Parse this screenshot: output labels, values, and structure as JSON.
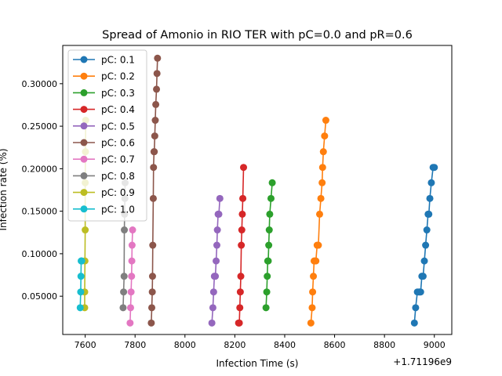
{
  "chart_data": {
    "type": "line",
    "title": "Spread of Amonio in RIO TER with pC=0.0 and pR=0.6",
    "xlabel": "Infection Time (s)",
    "ylabel": "Infection rate (%)",
    "x_offset_label": "+1.71196e9",
    "xlim": [
      7510,
      9070
    ],
    "ylim": [
      0.005,
      0.345
    ],
    "x_ticks": [
      7600,
      7800,
      8000,
      8200,
      8400,
      8600,
      8800,
      9000
    ],
    "x_tick_labels": [
      "7600",
      "7800",
      "8000",
      "8200",
      "8400",
      "8600",
      "8800",
      "9000"
    ],
    "y_ticks": [
      0.05,
      0.1,
      0.15,
      0.2,
      0.25,
      0.3
    ],
    "y_tick_labels": [
      "0.05000",
      "0.10000",
      "0.15000",
      "0.20000",
      "0.25000",
      "0.30000"
    ],
    "grid": false,
    "legend_position": "top-left",
    "series": [
      {
        "name": "pC: 0.1",
        "color": "#1f77b4",
        "x": [
          8920,
          8925,
          8932,
          8938,
          8942,
          8945,
          8950,
          8955,
          8960,
          8965,
          8970,
          8975,
          8978,
          8982,
          8988,
          8995,
          9000
        ],
        "y": [
          0.0185,
          0.0365,
          0.055,
          0.055,
          0.055,
          0.055,
          0.0735,
          0.0735,
          0.0915,
          0.11,
          0.128,
          0.1465,
          0.1465,
          0.165,
          0.1835,
          0.2015,
          0.2015
        ]
      },
      {
        "name": "pC: 0.2",
        "color": "#ff7f0e",
        "x": [
          8505,
          8510,
          8512,
          8515,
          8518,
          8520,
          8525,
          8530,
          8535,
          8540,
          8545,
          8550,
          8552,
          8555,
          8560,
          8565
        ],
        "y": [
          0.0185,
          0.0365,
          0.055,
          0.0735,
          0.0915,
          0.0915,
          0.0915,
          0.11,
          0.11,
          0.1465,
          0.165,
          0.1835,
          0.2015,
          0.22,
          0.2385,
          0.257
        ]
      },
      {
        "name": "pC: 0.3",
        "color": "#2ca02c",
        "x": [
          8325,
          8328,
          8330,
          8332,
          8334,
          8336,
          8338,
          8340,
          8345,
          8350
        ],
        "y": [
          0.0365,
          0.055,
          0.0735,
          0.0915,
          0.0915,
          0.11,
          0.128,
          0.1465,
          0.165,
          0.1835
        ]
      },
      {
        "name": "pC: 0.4",
        "color": "#d62728",
        "x": [
          8215,
          8218,
          8220,
          8222,
          8224,
          8226,
          8228,
          8230,
          8232,
          8235
        ],
        "y": [
          0.0185,
          0.0185,
          0.0365,
          0.055,
          0.0735,
          0.11,
          0.128,
          0.1465,
          0.165,
          0.2015
        ]
      },
      {
        "name": "pC: 0.5",
        "color": "#9467bd",
        "x": [
          8108,
          8112,
          8115,
          8118,
          8122,
          8125,
          8128,
          8130,
          8133,
          8136,
          8140
        ],
        "y": [
          0.0185,
          0.0365,
          0.055,
          0.0735,
          0.0735,
          0.0915,
          0.11,
          0.128,
          0.1465,
          0.1465,
          0.165
        ]
      },
      {
        "name": "pC: 0.6",
        "color": "#8c564b",
        "x": [
          7865,
          7867,
          7869,
          7870,
          7871,
          7873,
          7874,
          7876,
          7877,
          7879,
          7881,
          7883,
          7886,
          7888,
          7890
        ],
        "y": [
          0.0185,
          0.0365,
          0.055,
          0.0735,
          0.11,
          0.165,
          0.2015,
          0.22,
          0.22,
          0.2385,
          0.257,
          0.2755,
          0.2935,
          0.312,
          0.33
        ]
      },
      {
        "name": "pC: 0.7",
        "color": "#e377c2",
        "x": [
          7780,
          7782,
          7784,
          7786,
          7787,
          7788,
          7790
        ],
        "y": [
          0.0185,
          0.0365,
          0.055,
          0.0735,
          0.0915,
          0.11,
          0.128
        ]
      },
      {
        "name": "pC: 0.8",
        "color": "#7f7f7f",
        "x": [
          7752,
          7754,
          7756,
          7757,
          7758,
          7759,
          7760
        ],
        "y": [
          0.0365,
          0.055,
          0.0735,
          0.128,
          0.1465,
          0.165,
          0.1835
        ]
      },
      {
        "name": "pC: 0.9",
        "color": "#bcbd22",
        "x": [
          7598,
          7598,
          7599,
          7600,
          7600,
          7601,
          7602
        ],
        "y": [
          0.0365,
          0.055,
          0.0915,
          0.128,
          0.1835,
          0.22,
          0.257
        ]
      },
      {
        "name": "pC: 1.0",
        "color": "#17becf",
        "x": [
          7580,
          7582,
          7583,
          7584,
          7585,
          7586
        ],
        "y": [
          0.0365,
          0.055,
          0.0735,
          0.0915,
          0.0915,
          0.0915
        ]
      }
    ]
  }
}
